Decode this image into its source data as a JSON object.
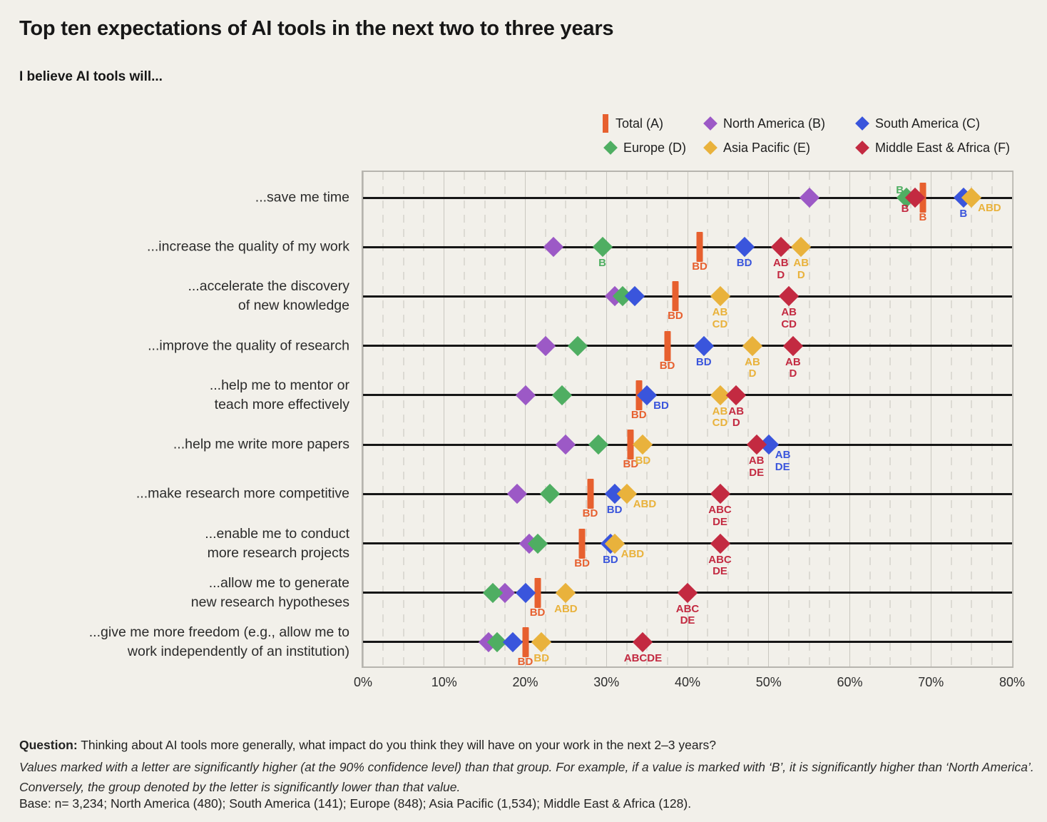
{
  "header": {
    "title": "Top ten expectations of AI tools in the next two to three years",
    "subtitle": "I believe AI tools will..."
  },
  "legend": {
    "items": [
      {
        "key": "total",
        "label": "Total (A)",
        "marker": "bar"
      },
      {
        "key": "na",
        "label": "North America (B)",
        "marker": "diamond"
      },
      {
        "key": "sa",
        "label": "South America (C)",
        "marker": "diamond"
      },
      {
        "key": "eu",
        "label": "Europe (D)",
        "marker": "diamond"
      },
      {
        "key": "ap",
        "label": "Asia Pacific (E)",
        "marker": "diamond"
      },
      {
        "key": "mea",
        "label": "Middle East & Africa (F)",
        "marker": "diamond"
      }
    ]
  },
  "colors": {
    "total": "#e7602f",
    "na": "#9c59c6",
    "sa": "#3a55dc",
    "eu": "#4fae62",
    "ap": "#e9b23c",
    "mea": "#c32a41",
    "background": "#f2f0ea",
    "row_line": "#161616",
    "grid_major": "#c9c7c0",
    "grid_minor": "#dcdad3"
  },
  "chart_data": {
    "type": "scatter",
    "subtype": "horizontal-dot-plot",
    "unit": "%",
    "x_axis": {
      "min": 0,
      "max": 80,
      "tick_step": 10,
      "minor_step": 2.5,
      "tick_labels": [
        "0%",
        "10%",
        "20%",
        "30%",
        "40%",
        "50%",
        "60%",
        "70%",
        "80%"
      ]
    },
    "series_order": [
      "total",
      "na",
      "eu",
      "sa",
      "ap",
      "mea"
    ],
    "series_names": {
      "total": "Total (A)",
      "na": "North America (B)",
      "sa": "South America (C)",
      "eu": "Europe (D)",
      "ap": "Asia Pacific (E)",
      "mea": "Middle East & Africa (F)"
    },
    "rows": [
      {
        "label": "...save me time",
        "points": {
          "total": {
            "v": 69,
            "sig": "B",
            "pos": "below"
          },
          "na": {
            "v": 55
          },
          "sa": {
            "v": 74,
            "sig": "B",
            "pos": "below"
          },
          "eu": {
            "v": 67,
            "sig": "B",
            "pos": "aboveleft"
          },
          "ap": {
            "v": 75,
            "sig": "ABD",
            "pos": "right"
          },
          "mea": {
            "v": 68,
            "sig": "B",
            "pos": "belowleft"
          }
        }
      },
      {
        "label": "...increase the quality of my work",
        "points": {
          "total": {
            "v": 41.5,
            "sig": "BD",
            "pos": "below"
          },
          "na": {
            "v": 23.5
          },
          "sa": {
            "v": 47,
            "sig": "BD",
            "pos": "below"
          },
          "eu": {
            "v": 29.5,
            "sig": "B",
            "pos": "below"
          },
          "ap": {
            "v": 54,
            "sig": "AB\nD",
            "pos": "below"
          },
          "mea": {
            "v": 51.5,
            "sig": "AB\nD",
            "pos": "below"
          }
        }
      },
      {
        "label": "...accelerate the discovery\nof new knowledge",
        "points": {
          "total": {
            "v": 38.5,
            "sig": "BD",
            "pos": "below"
          },
          "na": {
            "v": 31
          },
          "sa": {
            "v": 33.5
          },
          "eu": {
            "v": 32
          },
          "ap": {
            "v": 44,
            "sig": "AB\nCD",
            "pos": "below"
          },
          "mea": {
            "v": 52.5,
            "sig": "AB\nCD",
            "pos": "below"
          }
        }
      },
      {
        "label": "...improve the quality of research",
        "points": {
          "total": {
            "v": 37.5,
            "sig": "BD",
            "pos": "below"
          },
          "na": {
            "v": 22.5
          },
          "sa": {
            "v": 42,
            "sig": "BD",
            "pos": "below"
          },
          "eu": {
            "v": 26.5
          },
          "ap": {
            "v": 48,
            "sig": "AB\nD",
            "pos": "below"
          },
          "mea": {
            "v": 53,
            "sig": "AB\nD",
            "pos": "below"
          }
        }
      },
      {
        "label": "...help me to mentor or\nteach more effectively",
        "points": {
          "total": {
            "v": 34,
            "sig": "BD",
            "pos": "below"
          },
          "na": {
            "v": 20
          },
          "sa": {
            "v": 35,
            "sig": "BD",
            "pos": "right"
          },
          "eu": {
            "v": 24.5
          },
          "ap": {
            "v": 44,
            "sig": "AB\nCD",
            "pos": "below"
          },
          "mea": {
            "v": 46,
            "sig": "AB\nD",
            "pos": "below"
          }
        }
      },
      {
        "label": "...help me write more papers",
        "points": {
          "total": {
            "v": 33,
            "sig": "BD",
            "pos": "below"
          },
          "na": {
            "v": 25
          },
          "sa": {
            "v": 50,
            "sig": "AB\nDE",
            "pos": "right"
          },
          "eu": {
            "v": 29
          },
          "ap": {
            "v": 34.5,
            "sig": "BD",
            "pos": "below"
          },
          "mea": {
            "v": 48.5,
            "sig": "AB\nDE",
            "pos": "below"
          }
        }
      },
      {
        "label": "...make research more competitive",
        "points": {
          "total": {
            "v": 28,
            "sig": "BD",
            "pos": "below"
          },
          "na": {
            "v": 19
          },
          "sa": {
            "v": 31,
            "sig": "BD",
            "pos": "below"
          },
          "eu": {
            "v": 23
          },
          "ap": {
            "v": 32.5,
            "sig": "ABD",
            "pos": "right"
          },
          "mea": {
            "v": 44,
            "sig": "ABC\nDE",
            "pos": "below"
          }
        }
      },
      {
        "label": "...enable me to conduct\nmore research projects",
        "points": {
          "total": {
            "v": 27,
            "sig": "BD",
            "pos": "below"
          },
          "na": {
            "v": 20.5
          },
          "sa": {
            "v": 30.5,
            "sig": "BD",
            "pos": "below"
          },
          "eu": {
            "v": 21.5
          },
          "ap": {
            "v": 31,
            "sig": "ABD",
            "pos": "right"
          },
          "mea": {
            "v": 44,
            "sig": "ABC\nDE",
            "pos": "below"
          }
        }
      },
      {
        "label": "...allow me to generate\nnew research hypotheses",
        "points": {
          "total": {
            "v": 21.5,
            "sig": "BD",
            "pos": "below"
          },
          "na": {
            "v": 17.5
          },
          "sa": {
            "v": 20
          },
          "eu": {
            "v": 16
          },
          "ap": {
            "v": 25,
            "sig": "ABD",
            "pos": "below"
          },
          "mea": {
            "v": 40,
            "sig": "ABC\nDE",
            "pos": "below"
          }
        }
      },
      {
        "label": "...give me more freedom (e.g., allow me to\nwork independently of an institution)",
        "points": {
          "total": {
            "v": 20,
            "sig": "BD",
            "pos": "below"
          },
          "na": {
            "v": 15.5
          },
          "sa": {
            "v": 18.5
          },
          "eu": {
            "v": 16.5
          },
          "ap": {
            "v": 22,
            "sig": "BD",
            "pos": "below"
          },
          "mea": {
            "v": 34.5,
            "sig": "ABCDE",
            "pos": "below"
          }
        }
      }
    ]
  },
  "footer": {
    "question_label": "Question:",
    "question_text": " Thinking about AI tools more generally, what impact do you think they will have on your work in the next 2–3 years?",
    "note": "Values marked with a letter are significantly higher (at the 90% confidence level) than that group. For example, if a value is marked with ‘B’, it is significantly higher than ‘North America’. Conversely, the group denoted by the letter is significantly lower than that value.",
    "base": "Base: n= 3,234; North America (480); South America (141); Europe (848); Asia Pacific (1,534); Middle East & Africa (128)."
  }
}
